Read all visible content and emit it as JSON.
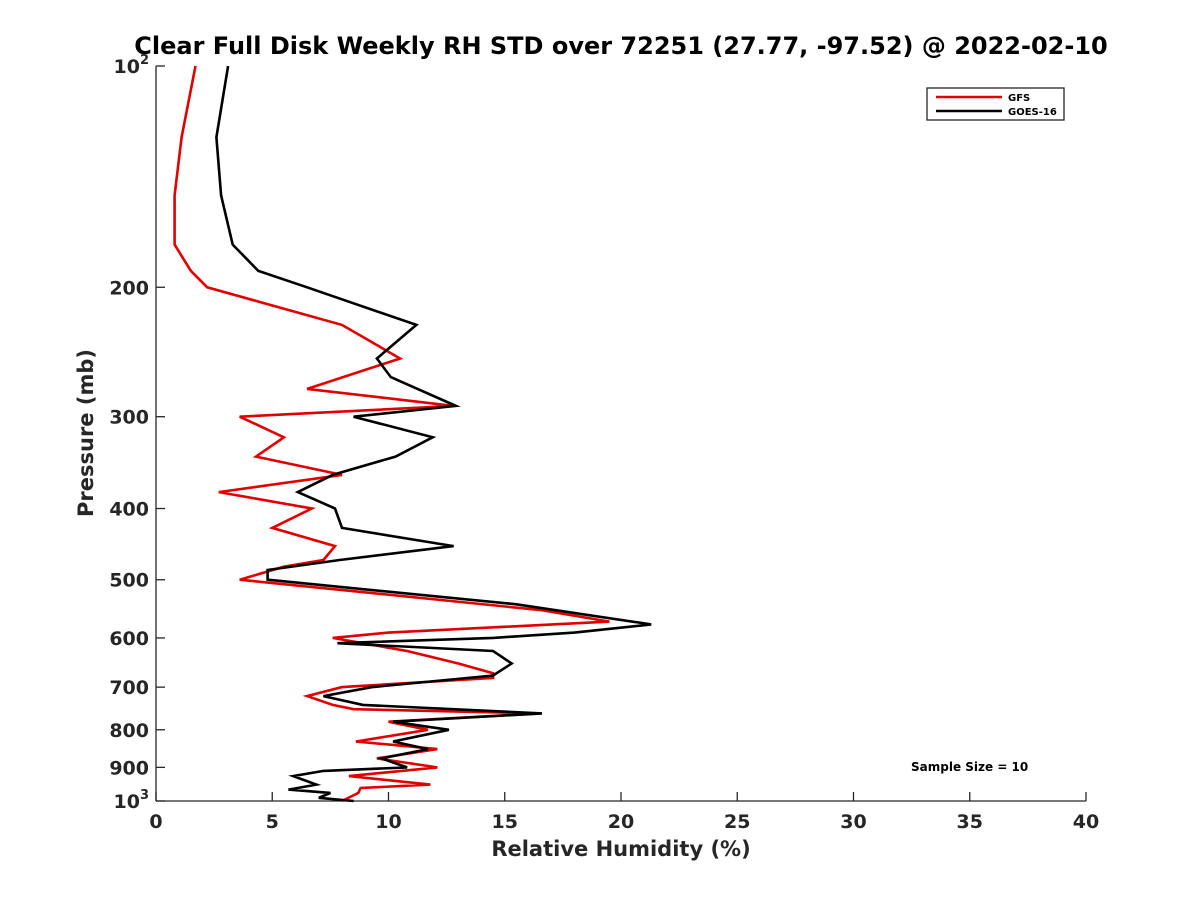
{
  "chart_data": {
    "type": "line",
    "title": "Clear Full Disk Weekly RH STD over 72251 (27.77, -97.52) @ 2022-02-10",
    "xlabel": "Relative Humidity (%)",
    "ylabel": "Pressure (mb)",
    "xlim": [
      0,
      40
    ],
    "ylim": [
      100,
      1000
    ],
    "yscale": "log",
    "y_reversed": true,
    "grid": false,
    "legend_position": "top-right",
    "x_ticks": [
      "0",
      "5",
      "10",
      "15",
      "20",
      "25",
      "30",
      "35",
      "40"
    ],
    "y_ticks": [
      {
        "value": 100,
        "base": "10",
        "exp": "2"
      },
      {
        "value": 200,
        "label": "200"
      },
      {
        "value": 300,
        "label": "300"
      },
      {
        "value": 400,
        "label": "400"
      },
      {
        "value": 500,
        "label": "500"
      },
      {
        "value": 600,
        "label": "600"
      },
      {
        "value": 700,
        "label": "700"
      },
      {
        "value": 800,
        "label": "800"
      },
      {
        "value": 900,
        "label": "900"
      },
      {
        "value": 1000,
        "base": "10",
        "exp": "3"
      }
    ],
    "annotation": "Sample Size = 10",
    "series": [
      {
        "name": "GFS",
        "color": "#e00000",
        "points": [
          [
            1.7,
            100
          ],
          [
            1.1,
            125
          ],
          [
            0.8,
            150
          ],
          [
            0.8,
            175
          ],
          [
            1.5,
            190
          ],
          [
            2.2,
            200
          ],
          [
            8.0,
            225
          ],
          [
            10.5,
            250
          ],
          [
            6.5,
            275
          ],
          [
            12.8,
            290
          ],
          [
            3.6,
            300
          ],
          [
            5.5,
            320
          ],
          [
            4.3,
            340
          ],
          [
            8.0,
            360
          ],
          [
            2.7,
            380
          ],
          [
            6.7,
            400
          ],
          [
            5.0,
            425
          ],
          [
            7.7,
            450
          ],
          [
            7.2,
            470
          ],
          [
            5.5,
            480
          ],
          [
            3.6,
            500
          ],
          [
            16.6,
            550
          ],
          [
            19.5,
            570
          ],
          [
            10.0,
            590
          ],
          [
            7.6,
            600
          ],
          [
            10.8,
            625
          ],
          [
            13.0,
            650
          ],
          [
            14.5,
            670
          ],
          [
            14.5,
            680
          ],
          [
            8.0,
            700
          ],
          [
            6.5,
            720
          ],
          [
            7.6,
            740
          ],
          [
            8.5,
            750
          ],
          [
            16.5,
            760
          ],
          [
            10.0,
            780
          ],
          [
            11.7,
            800
          ],
          [
            8.6,
            830
          ],
          [
            12.1,
            850
          ],
          [
            9.5,
            875
          ],
          [
            12.1,
            900
          ],
          [
            8.3,
            925
          ],
          [
            11.8,
            950
          ],
          [
            8.8,
            960
          ],
          [
            8.7,
            975
          ],
          [
            8.0,
            1000
          ]
        ]
      },
      {
        "name": "GOES-16",
        "color": "#000000",
        "points": [
          [
            3.1,
            100
          ],
          [
            2.6,
            125
          ],
          [
            2.8,
            150
          ],
          [
            3.3,
            175
          ],
          [
            4.4,
            190
          ],
          [
            6.5,
            200
          ],
          [
            11.2,
            225
          ],
          [
            9.5,
            250
          ],
          [
            10.1,
            265
          ],
          [
            12.9,
            290
          ],
          [
            8.5,
            300
          ],
          [
            11.9,
            320
          ],
          [
            10.3,
            340
          ],
          [
            7.6,
            360
          ],
          [
            6.1,
            380
          ],
          [
            7.7,
            400
          ],
          [
            8.0,
            425
          ],
          [
            12.8,
            450
          ],
          [
            7.9,
            470
          ],
          [
            4.8,
            485
          ],
          [
            4.8,
            500
          ],
          [
            15.5,
            540
          ],
          [
            21.3,
            575
          ],
          [
            18.0,
            590
          ],
          [
            14.5,
            600
          ],
          [
            7.8,
            610
          ],
          [
            14.5,
            625
          ],
          [
            15.3,
            650
          ],
          [
            14.5,
            675
          ],
          [
            9.3,
            700
          ],
          [
            7.2,
            720
          ],
          [
            8.9,
            740
          ],
          [
            16.6,
            760
          ],
          [
            10.2,
            780
          ],
          [
            12.6,
            800
          ],
          [
            10.2,
            830
          ],
          [
            11.7,
            850
          ],
          [
            9.7,
            875
          ],
          [
            10.8,
            900
          ],
          [
            7.2,
            910
          ],
          [
            5.9,
            925
          ],
          [
            6.9,
            950
          ],
          [
            5.7,
            965
          ],
          [
            7.5,
            975
          ],
          [
            7.0,
            990
          ],
          [
            8.5,
            1000
          ]
        ]
      }
    ]
  }
}
